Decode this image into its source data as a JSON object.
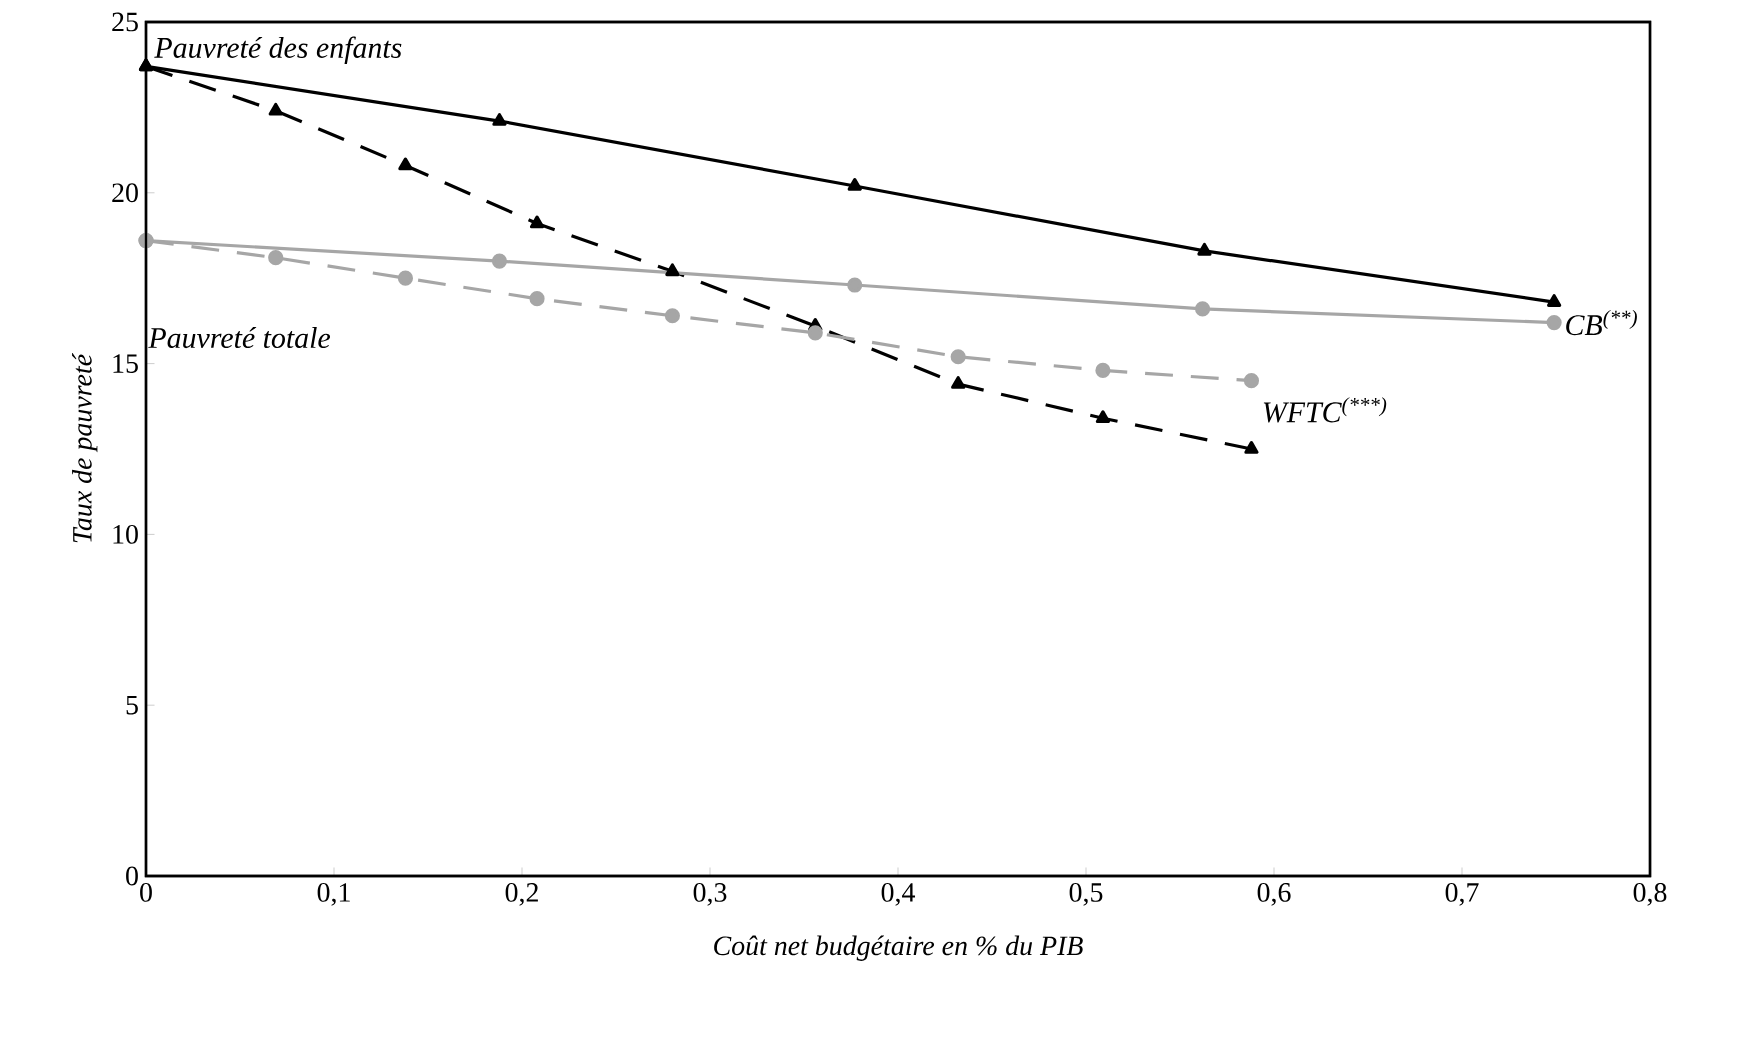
{
  "chart_data": {
    "type": "line",
    "xlabel": "Coût net budgétaire en % du PIB",
    "ylabel": "Taux de pauvreté",
    "xlim": [
      0,
      0.8
    ],
    "xticks": [
      0,
      {
        "value": 0.1,
        "label": "0,1"
      },
      {
        "value": 0.2,
        "label": "0,2"
      },
      {
        "value": 0.3,
        "label": "0,3"
      },
      {
        "value": 0.4,
        "label": "0,4"
      },
      {
        "value": 0.5,
        "label": "0,5"
      },
      {
        "value": 0.6,
        "label": "0,6"
      },
      {
        "value": 0.7,
        "label": "0,7"
      },
      {
        "value": 0.8,
        "label": "0,8"
      }
    ],
    "ylim": [
      0,
      25
    ],
    "yticks": [
      0,
      5,
      10,
      15,
      20,
      25
    ],
    "series": [
      {
        "color": "#000000",
        "marker": "triangle",
        "line_style": "solid",
        "x": [
          0,
          0.188,
          0.377,
          0.563,
          0.749
        ],
        "values": [
          23.7,
          22.1,
          20.2,
          18.3,
          16.8
        ]
      },
      {
        "color": "#000000",
        "marker": "triangle",
        "line_style": "dashed",
        "x": [
          0,
          0.069,
          0.138,
          0.208,
          0.28,
          0.356,
          0.432,
          0.509,
          0.588
        ],
        "values": [
          23.7,
          22.4,
          20.8,
          19.1,
          17.7,
          16.1,
          14.4,
          13.4,
          12.5
        ]
      },
      {
        "color": "#a6a6a6",
        "marker": "circle",
        "line_style": "solid",
        "x": [
          0,
          0.188,
          0.377,
          0.562,
          0.749
        ],
        "values": [
          18.6,
          18.0,
          17.3,
          16.6,
          16.2
        ]
      },
      {
        "color": "#a6a6a6",
        "marker": "circle",
        "line_style": "dashed",
        "x": [
          0,
          0.069,
          0.138,
          0.208,
          0.28,
          0.356,
          0.432,
          0.509,
          0.588
        ],
        "values": [
          18.6,
          18.1,
          17.5,
          16.9,
          16.4,
          15.9,
          15.2,
          14.8,
          14.5
        ]
      }
    ],
    "annotations": [
      {
        "text": "Pauvreté des enfants",
        "x": 0,
        "y": 23.7
      },
      {
        "text": "Pauvreté totale",
        "x": 0,
        "y": 18.6
      },
      {
        "text": "CB$^{(**)}$",
        "x": 0.749,
        "y": 16.2
      },
      {
        "text": "WFTC$^{(***)}$",
        "x": 0.588,
        "y": 12.5
      }
    ]
  }
}
